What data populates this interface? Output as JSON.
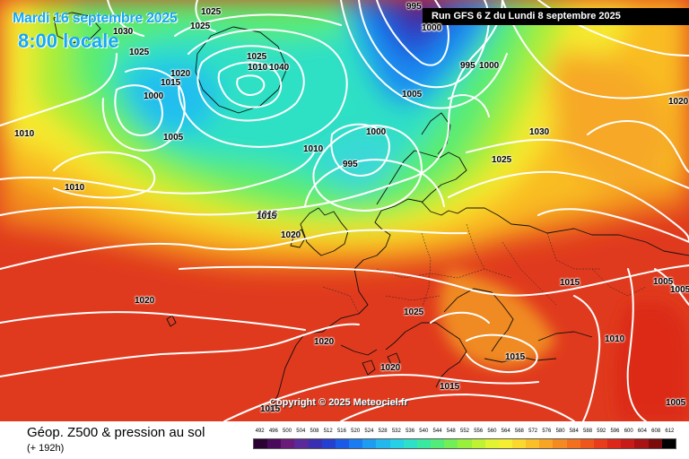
{
  "map": {
    "date_label": "Mardi 16 septembre 2025",
    "time_label": "8:00 locale",
    "run_label": "Run GFS 6 Z du Lundi 8 septembre 2025",
    "copyright": "Copyright © 2025 Meteociel.fr",
    "isobar_labels": [
      "1025",
      "1030",
      "1025",
      "1025",
      "1015",
      "1020",
      "1000",
      "1025",
      "1010",
      "1040",
      "1005",
      "1010",
      "1010",
      "1015",
      "1020",
      "1005",
      "1000",
      "995",
      "1010",
      "1015",
      "995",
      "995",
      "1000",
      "1005",
      "1030",
      "1025",
      "1020",
      "1020",
      "1015",
      "1005",
      "1005",
      "1025",
      "1020",
      "1020",
      "1015",
      "1010",
      "1015",
      "1015",
      "1005",
      "1000"
    ]
  },
  "footer": {
    "title": "Géop. Z500 & pression au sol",
    "subtitle": "(+ 192h)"
  },
  "legend": {
    "labels": [
      "492",
      "496",
      "500",
      "504",
      "508",
      "512",
      "516",
      "520",
      "524",
      "528",
      "532",
      "536",
      "540",
      "544",
      "548",
      "552",
      "556",
      "560",
      "564",
      "568",
      "572",
      "576",
      "580",
      "584",
      "588",
      "592",
      "596",
      "600",
      "604",
      "608",
      "612"
    ],
    "colors": [
      "#2b0033",
      "#4a0a5c",
      "#6a1b7a",
      "#5a2a9a",
      "#3a2fb0",
      "#2340d0",
      "#1a5ae6",
      "#1a7cf0",
      "#1e9cf2",
      "#22b8ee",
      "#26d0e6",
      "#2ee0c8",
      "#3ae8a0",
      "#52ec78",
      "#72ee56",
      "#98f03c",
      "#bef232",
      "#e0f430",
      "#f6ee30",
      "#fbd82c",
      "#fbbf28",
      "#f8a424",
      "#f68a22",
      "#f2701e",
      "#ee561c",
      "#e83c1a",
      "#dc2818",
      "#c81a16",
      "#a81212",
      "#7c0c0c",
      "#000000"
    ]
  }
}
